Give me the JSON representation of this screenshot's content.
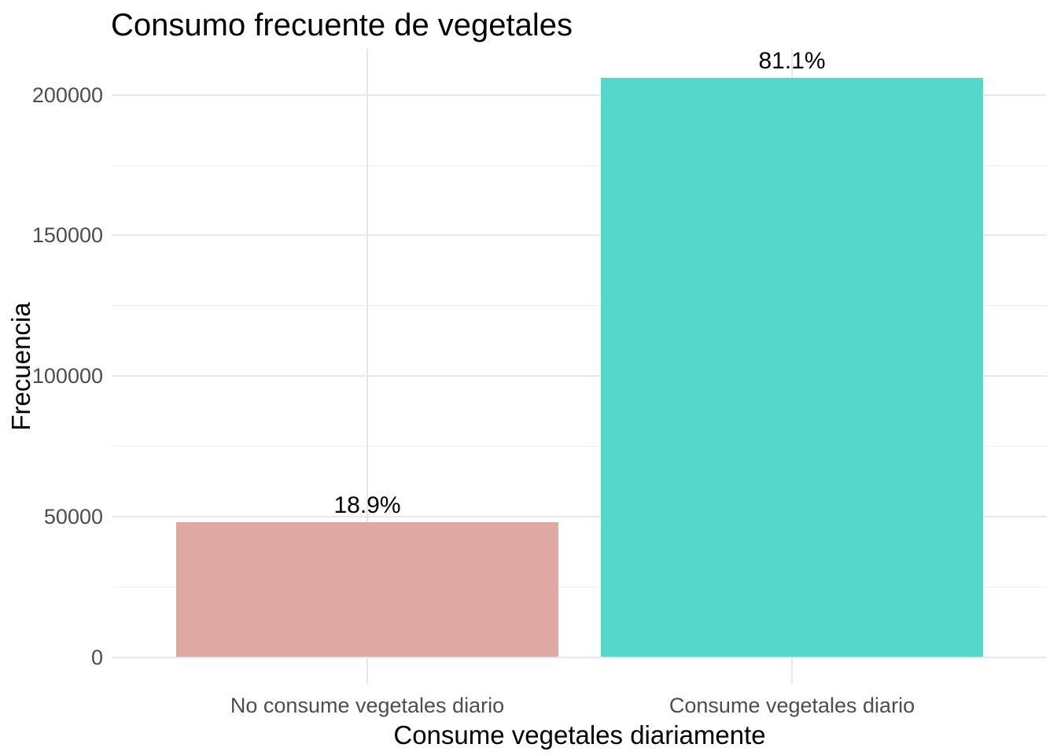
{
  "chart_data": {
    "type": "bar",
    "title": "Consumo frecuente de vegetales",
    "xlabel": "Consume vegetales diariamente",
    "ylabel": "Frecuencia",
    "categories": [
      "No consume vegetales diario",
      "Consume vegetales diario"
    ],
    "values": [
      48000,
      206000
    ],
    "value_labels": [
      "18.9%",
      "81.1%"
    ],
    "bar_colors": [
      "#E0A8A2",
      "#55D8CB"
    ],
    "ylim": [
      0,
      216500
    ],
    "y_major_ticks": [
      0,
      50000,
      100000,
      150000,
      200000
    ],
    "y_tick_labels": [
      "0",
      "50000",
      "100000",
      "150000",
      "200000"
    ],
    "y_minor_ticks": [
      25000,
      75000,
      125000,
      175000
    ],
    "grid": true,
    "legend": "none",
    "colors": {
      "grid_major": "#E8E8E8",
      "grid_minor": "#F0F0F0",
      "tick_label": "#4D4D4D",
      "text": "#000000",
      "background": "#FFFFFF"
    }
  }
}
